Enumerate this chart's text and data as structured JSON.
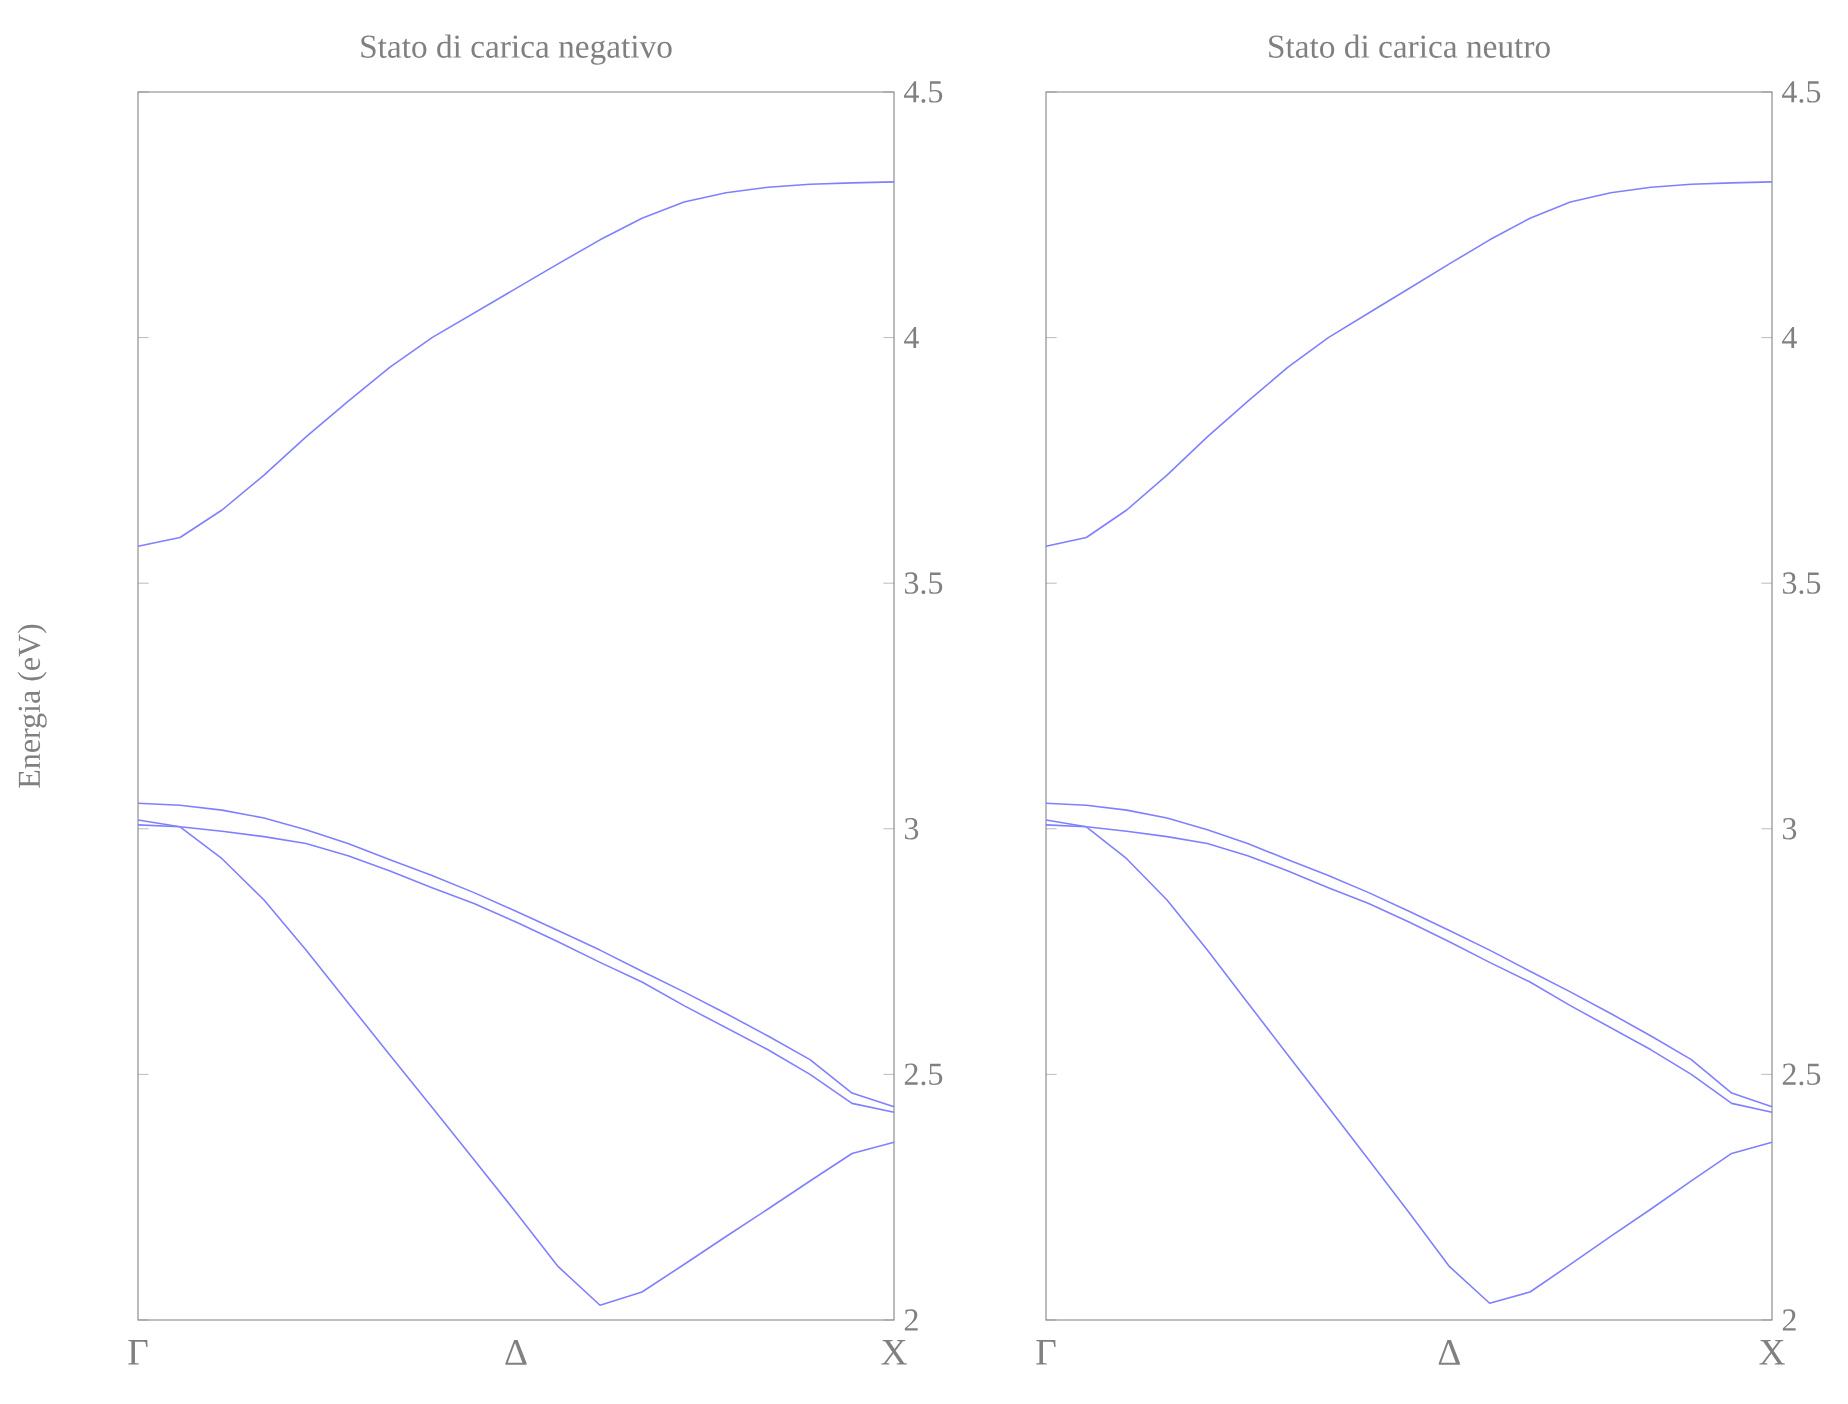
{
  "chart_data": [
    {
      "type": "line",
      "title": "Stato di carica negativo",
      "ylabel": "Energia (eV)",
      "marker": "none",
      "line_style": "solid",
      "categories": [
        "Γ",
        null,
        null,
        null,
        null,
        null,
        null,
        null,
        null,
        "Δ",
        null,
        null,
        null,
        null,
        null,
        null,
        null,
        null,
        "X"
      ],
      "ylim": [
        2,
        4.5
      ],
      "yticks": [
        2,
        2.5,
        3,
        3.5,
        4,
        4.5
      ],
      "series": [
        {
          "color": "#8080ff",
          "values": [
            3.575,
            3.593,
            3.649,
            3.72,
            3.798,
            3.87,
            3.94,
            4.0,
            4.05,
            4.1,
            4.15,
            4.199,
            4.243,
            4.276,
            4.295,
            4.306,
            4.312,
            4.315,
            4.317
          ]
        },
        {
          "color": "#8080ff",
          "values": [
            3.052,
            3.048,
            3.038,
            3.022,
            2.998,
            2.97,
            2.937,
            2.905,
            2.87,
            2.832,
            2.793,
            2.753,
            2.71,
            2.668,
            2.624,
            2.578,
            2.53,
            2.462,
            2.434
          ]
        },
        {
          "color": "#8080ff",
          "values": [
            3.018,
            3.004,
            2.995,
            2.984,
            2.97,
            2.945,
            2.914,
            2.88,
            2.848,
            2.81,
            2.77,
            2.728,
            2.688,
            2.64,
            2.595,
            2.55,
            2.5,
            2.441,
            2.423
          ]
        },
        {
          "color": "#8080ff",
          "values": [
            3.008,
            3.004,
            2.939,
            2.855,
            2.753,
            2.646,
            2.539,
            2.433,
            2.326,
            2.219,
            2.109,
            2.03,
            2.057,
            2.113,
            2.17,
            2.226,
            2.283,
            2.339,
            2.362
          ]
        }
      ]
    },
    {
      "type": "line",
      "title": "Stato di carica neutro",
      "marker": "none",
      "line_style": "solid",
      "categories": [
        "Γ",
        null,
        null,
        null,
        null,
        null,
        null,
        null,
        null,
        null,
        "Δ",
        null,
        null,
        null,
        null,
        null,
        null,
        null,
        "X"
      ],
      "ylim": [
        2,
        4.5
      ],
      "yticks": [
        2,
        2.5,
        3,
        3.5,
        4,
        4.5
      ],
      "series": [
        {
          "color": "#8080ff",
          "values": [
            3.575,
            3.593,
            3.649,
            3.72,
            3.798,
            3.87,
            3.94,
            4.0,
            4.05,
            4.1,
            4.15,
            4.199,
            4.243,
            4.276,
            4.295,
            4.306,
            4.312,
            4.315,
            4.317
          ]
        },
        {
          "color": "#8080ff",
          "values": [
            3.052,
            3.048,
            3.038,
            3.022,
            2.998,
            2.97,
            2.937,
            2.905,
            2.87,
            2.832,
            2.793,
            2.753,
            2.71,
            2.668,
            2.624,
            2.578,
            2.53,
            2.462,
            2.434
          ]
        },
        {
          "color": "#8080ff",
          "values": [
            3.018,
            3.004,
            2.995,
            2.984,
            2.97,
            2.945,
            2.914,
            2.88,
            2.848,
            2.81,
            2.77,
            2.728,
            2.688,
            2.64,
            2.595,
            2.55,
            2.5,
            2.441,
            2.423
          ]
        },
        {
          "color": "#8080ff",
          "values": [
            3.008,
            3.004,
            2.939,
            2.855,
            2.753,
            2.646,
            2.539,
            2.433,
            2.326,
            2.219,
            2.109,
            2.034,
            2.057,
            2.113,
            2.17,
            2.226,
            2.283,
            2.339,
            2.362
          ]
        }
      ]
    }
  ]
}
